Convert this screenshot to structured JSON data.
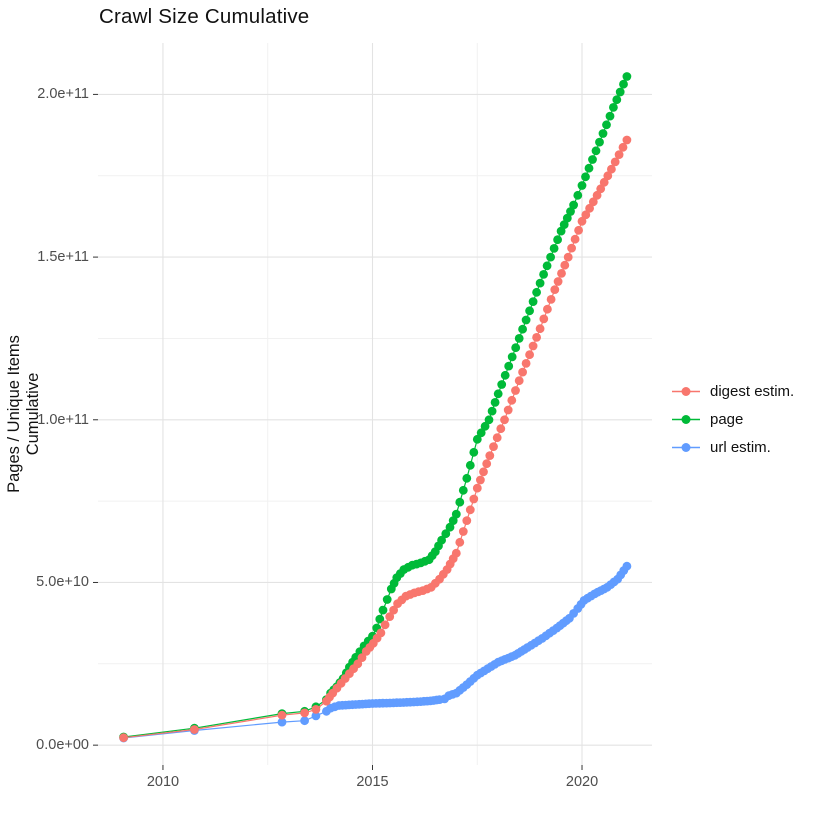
{
  "chart_data": {
    "type": "scatter",
    "title": "Crawl Size Cumulative",
    "xlabel": "",
    "ylabel": "Pages / Unique Items Cumulative",
    "value_unit": "billions of items (1e9); tick labels shown in scientific notation",
    "grid": true,
    "legend_position": "right",
    "x_range": [
      2008.45,
      2021.67
    ],
    "y_range_e9": [
      -6.1,
      215.8
    ],
    "x_ticks": [
      {
        "value": 2010,
        "label": "2010"
      },
      {
        "value": 2015,
        "label": "2015"
      },
      {
        "value": 2020,
        "label": "2020"
      }
    ],
    "x_minor": [
      2012.5,
      2017.5
    ],
    "y_ticks": [
      {
        "value": 0,
        "label": "0.0e+00"
      },
      {
        "value": 50,
        "label": "5.0e+10"
      },
      {
        "value": 100,
        "label": "1.0e+11"
      },
      {
        "value": 150,
        "label": "1.5e+11"
      },
      {
        "value": 200,
        "label": "2.0e+11"
      }
    ],
    "y_minor": [
      25,
      75,
      125,
      175
    ],
    "dot_interp_step_years": 0.085,
    "dense_from_year": 2013.8,
    "series": [
      {
        "name": "url estim.",
        "color": "#619CFF",
        "points": [
          [
            2009.06,
            2.2
          ],
          [
            2010.75,
            4.5
          ],
          [
            2012.84,
            7.1
          ],
          [
            2013.38,
            7.5
          ],
          [
            2013.65,
            9
          ],
          [
            2013.9,
            10.4
          ],
          [
            2014.0,
            11.4
          ],
          [
            2014.2,
            12.2
          ],
          [
            2014.6,
            12.5
          ],
          [
            2015.0,
            12.8
          ],
          [
            2015.5,
            13
          ],
          [
            2015.9,
            13.2
          ],
          [
            2016.15,
            13.4
          ],
          [
            2016.38,
            13.6
          ],
          [
            2016.6,
            14
          ],
          [
            2016.72,
            14.2
          ],
          [
            2016.82,
            15.2
          ],
          [
            2017.0,
            16
          ],
          [
            2017.25,
            18.6
          ],
          [
            2017.5,
            21.5
          ],
          [
            2017.75,
            23.5
          ],
          [
            2018.0,
            25.5
          ],
          [
            2018.4,
            27.6
          ],
          [
            2018.7,
            30
          ],
          [
            2019.05,
            32.8
          ],
          [
            2019.4,
            36
          ],
          [
            2019.7,
            39
          ],
          [
            2019.9,
            42
          ],
          [
            2020.05,
            44.5
          ],
          [
            2020.3,
            46.5
          ],
          [
            2020.6,
            48.5
          ],
          [
            2020.85,
            51
          ],
          [
            2021.07,
            55
          ]
        ]
      },
      {
        "name": "page",
        "color": "#00BA38",
        "points": [
          [
            2009.06,
            2.5
          ],
          [
            2010.75,
            5.2
          ],
          [
            2012.84,
            9.7
          ],
          [
            2013.38,
            10.4
          ],
          [
            2013.65,
            11.8
          ],
          [
            2013.9,
            14
          ],
          [
            2014.0,
            16
          ],
          [
            2014.15,
            18
          ],
          [
            2014.3,
            20.5
          ],
          [
            2014.45,
            24
          ],
          [
            2014.6,
            27
          ],
          [
            2014.8,
            30.5
          ],
          [
            2015.0,
            33.5
          ],
          [
            2015.1,
            36
          ],
          [
            2015.25,
            41.5
          ],
          [
            2015.45,
            48
          ],
          [
            2015.58,
            51.5
          ],
          [
            2015.75,
            54
          ],
          [
            2015.95,
            55.3
          ],
          [
            2016.15,
            56
          ],
          [
            2016.35,
            57
          ],
          [
            2016.5,
            59.5
          ],
          [
            2016.65,
            63
          ],
          [
            2016.85,
            67
          ],
          [
            2017.0,
            71
          ],
          [
            2017.25,
            82
          ],
          [
            2017.5,
            94
          ],
          [
            2017.78,
            100
          ],
          [
            2018.0,
            108
          ],
          [
            2018.25,
            116.5
          ],
          [
            2018.5,
            125
          ],
          [
            2018.75,
            133.5
          ],
          [
            2019.0,
            142
          ],
          [
            2019.25,
            150
          ],
          [
            2019.5,
            158
          ],
          [
            2019.8,
            166
          ],
          [
            2020.0,
            172
          ],
          [
            2020.25,
            180
          ],
          [
            2020.5,
            188
          ],
          [
            2020.75,
            196
          ],
          [
            2021.07,
            205.5
          ]
        ]
      },
      {
        "name": "digest estim.",
        "color": "#F8766D",
        "points": [
          [
            2009.06,
            2.3
          ],
          [
            2010.75,
            4.8
          ],
          [
            2012.84,
            9.2
          ],
          [
            2013.38,
            9.9
          ],
          [
            2013.65,
            11
          ],
          [
            2013.9,
            13.5
          ],
          [
            2014.05,
            16
          ],
          [
            2014.25,
            19
          ],
          [
            2014.45,
            22
          ],
          [
            2014.65,
            25
          ],
          [
            2014.85,
            28.8
          ],
          [
            2015.02,
            31.3
          ],
          [
            2015.2,
            34.5
          ],
          [
            2015.3,
            37
          ],
          [
            2015.41,
            39.5
          ],
          [
            2015.6,
            43.5
          ],
          [
            2015.8,
            45.8
          ],
          [
            2016.0,
            46.8
          ],
          [
            2016.2,
            47.5
          ],
          [
            2016.4,
            48.5
          ],
          [
            2016.6,
            51
          ],
          [
            2016.78,
            54
          ],
          [
            2017.0,
            59
          ],
          [
            2017.25,
            69
          ],
          [
            2017.5,
            79
          ],
          [
            2017.8,
            89
          ],
          [
            2018.15,
            100
          ],
          [
            2018.5,
            112
          ],
          [
            2018.75,
            120
          ],
          [
            2019.0,
            128
          ],
          [
            2019.35,
            140
          ],
          [
            2019.67,
            150
          ],
          [
            2020.0,
            161
          ],
          [
            2020.36,
            169
          ],
          [
            2020.7,
            177
          ],
          [
            2021.07,
            186
          ]
        ]
      }
    ],
    "legend_order": [
      "digest estim.",
      "page",
      "url estim."
    ]
  },
  "colors": {
    "background": "#FFFFFF",
    "grid_major": "#E3E3E3",
    "grid_minor": "#F1F1F1",
    "tick_mark": "#333333",
    "tick_label": "#4D4D4D",
    "text": "#111111"
  }
}
